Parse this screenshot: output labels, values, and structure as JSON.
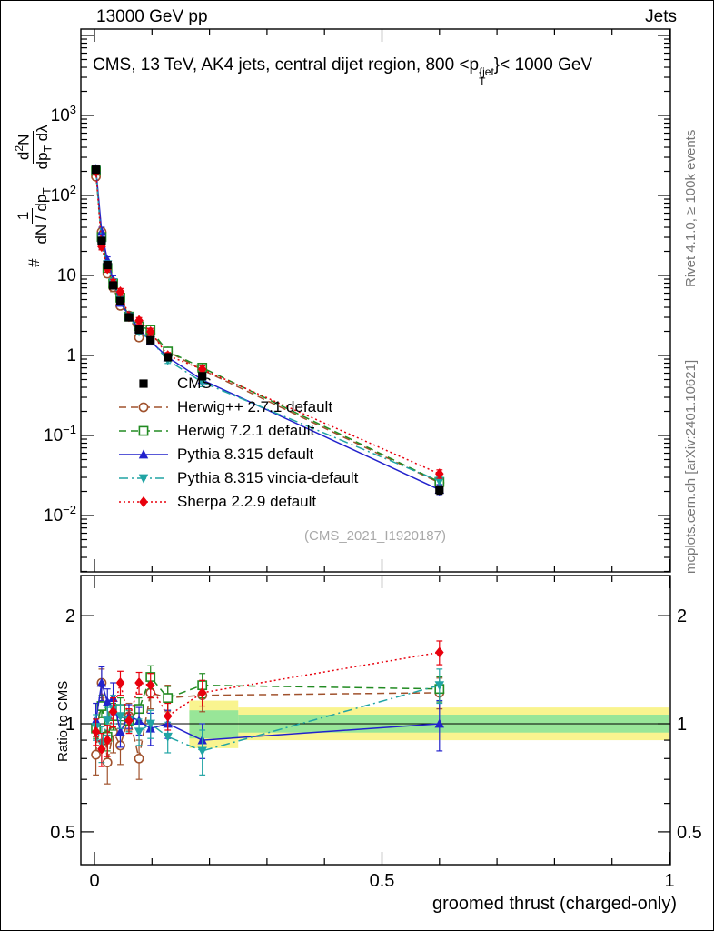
{
  "header": {
    "left": "13000 GeV pp",
    "right": "Jets"
  },
  "side_labels": {
    "top_right": "Rivet 4.1.0, ≥ 100k events",
    "bottom_right": "mcplots.cern.ch [arXiv:2401.10621]"
  },
  "watermark": "(CMS_2021_I1920187)",
  "title_segments": [
    {
      "t": "CMS, 13 TeV, AK4 jets, central dijet region, 800 <p"
    },
    {
      "stack": true,
      "sup": "{jet",
      "sub": "T"
    },
    {
      "t": "}< 1000 GeV"
    }
  ],
  "axis_labels": {
    "x": "groomed thrust (charged-only)",
    "ratio_y": "Ratio to CMS",
    "main_y": {
      "prefix": "#",
      "frac1": {
        "num": [
          {
            "t": "1"
          }
        ],
        "den": [
          {
            "t": "dN / dp"
          },
          {
            "t": "T",
            "sub": true
          }
        ]
      },
      "frac2": {
        "num": [
          {
            "t": "d"
          },
          {
            "t": "2",
            "sup": true
          },
          {
            "t": "N"
          }
        ],
        "den": [
          {
            "t": "dp"
          },
          {
            "t": "T",
            "sub": true
          },
          {
            "t": " dλ"
          }
        ]
      }
    }
  },
  "chart_data": {
    "type": "line",
    "title": "CMS, 13 TeV, AK4 jets, central dijet region, 800 < pT{jet} < 1000 GeV",
    "xlabel": "groomed thrust (charged-only)",
    "ylabel": "# 1/(dN/dpT) d2N/(dpT dλ)",
    "ratio_ylabel": "Ratio to CMS",
    "xlim": [
      0,
      1
    ],
    "main_y_log_range": [
      0.002,
      12000
    ],
    "ratio_log_range": [
      0.405,
      2.59
    ],
    "xticks": [
      0,
      0.5,
      1
    ],
    "main_ytick_exponents": [
      3,
      2,
      1,
      0,
      -1,
      -2
    ],
    "ratio_yticks": [
      2,
      1,
      0.5
    ],
    "ratio_yticks_minor": [
      0.6,
      0.7,
      0.8,
      0.9
    ],
    "x": [
      0.0025,
      0.0125,
      0.0225,
      0.0325,
      0.045,
      0.06,
      0.0775,
      0.0975,
      0.1275,
      0.1875,
      0.6
    ],
    "reference": {
      "name": "CMS",
      "color": "#000000",
      "marker": "square",
      "line": "none",
      "values": [
        210,
        27,
        13.5,
        7.5,
        4.8,
        3.0,
        2.1,
        1.55,
        0.95,
        0.55,
        0.021
      ],
      "err_frac": [
        0.05,
        0.06,
        0.06,
        0.07,
        0.06,
        0.06,
        0.07,
        0.08,
        0.08,
        0.1,
        0.12
      ]
    },
    "series": [
      {
        "name": "Herwig++ 2.7.1 default",
        "color": "#a0522d",
        "line": "dashed",
        "marker": "circle-open",
        "ratio": [
          0.82,
          1.3,
          0.78,
          0.95,
          0.87,
          1.05,
          0.8,
          1.22,
          1.18,
          1.2,
          1.22
        ],
        "ratio_err": [
          0.1,
          0.12,
          0.1,
          0.12,
          0.1,
          0.09,
          0.1,
          0.12,
          0.1,
          0.12,
          0.12
        ]
      },
      {
        "name": "Herwig 7.2.1 default",
        "color": "#228b22",
        "line": "dashed",
        "marker": "square-open",
        "ratio": [
          0.97,
          1.12,
          0.92,
          1.05,
          1.1,
          1.02,
          1.1,
          1.35,
          1.18,
          1.28,
          1.25
        ],
        "ratio_err": [
          0.06,
          0.08,
          0.08,
          0.09,
          0.08,
          0.07,
          0.08,
          0.1,
          0.09,
          0.1,
          0.1
        ]
      },
      {
        "name": "Pythia 8.315 default",
        "color": "#2222cc",
        "line": "solid",
        "marker": "triangle-up",
        "ratio": [
          1.02,
          1.3,
          1.15,
          1.18,
          0.95,
          1.05,
          1.02,
          0.97,
          1.0,
          0.9,
          1.0
        ],
        "ratio_err": [
          0.12,
          0.14,
          0.1,
          0.12,
          0.09,
          0.08,
          0.09,
          0.1,
          0.09,
          0.1,
          0.16
        ]
      },
      {
        "name": "Pythia 8.315 vincia-default",
        "color": "#20a4a4",
        "line": "dashdot",
        "marker": "triangle-down",
        "ratio": [
          0.98,
          0.88,
          1.02,
          1.1,
          1.05,
          1.02,
          0.95,
          1.0,
          0.92,
          0.84,
          1.28
        ],
        "ratio_err": [
          0.08,
          0.1,
          0.09,
          0.1,
          0.08,
          0.07,
          0.08,
          0.09,
          0.09,
          0.12,
          0.14
        ]
      },
      {
        "name": "Sherpa 2.2.9 default",
        "color": "#e8000d",
        "line": "dotted",
        "marker": "diamond",
        "ratio": [
          0.95,
          0.85,
          0.9,
          1.08,
          1.3,
          1.02,
          1.3,
          1.28,
          1.05,
          1.22,
          1.58
        ],
        "ratio_err": [
          0.08,
          0.09,
          0.09,
          0.1,
          0.1,
          0.08,
          0.09,
          0.1,
          0.09,
          0.1,
          0.12
        ]
      }
    ],
    "bands": [
      {
        "x0": 0.165,
        "x1": 0.25,
        "yellow": [
          0.855,
          1.16
        ],
        "green": [
          0.91,
          1.09
        ]
      },
      {
        "x0": 0.25,
        "x1": 1.0,
        "yellow": [
          0.9,
          1.11
        ],
        "green": [
          0.945,
          1.06
        ]
      }
    ],
    "band_colors": {
      "yellow": "#f9f48f",
      "green": "#98e698"
    },
    "legend_position": "inside-left-middle",
    "grid": false
  }
}
